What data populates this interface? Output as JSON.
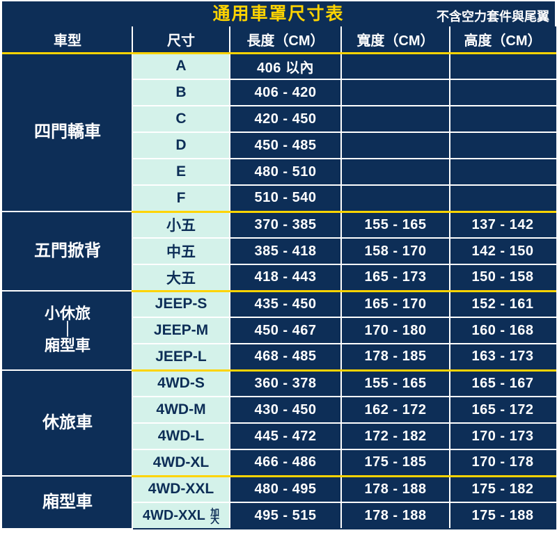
{
  "title": "通用車罩尺寸表",
  "subtitle": "不含空力套件與尾翼",
  "columns": [
    "車型",
    "尺寸",
    "長度（CM）",
    "寬度（CM）",
    "高度（CM）"
  ],
  "groups": [
    {
      "name_lines": [
        "四門轎車"
      ],
      "rows": [
        {
          "size": "A",
          "len": "406 以內",
          "w": "",
          "h": ""
        },
        {
          "size": "B",
          "len": "406 - 420",
          "w": "",
          "h": ""
        },
        {
          "size": "C",
          "len": "420 - 450",
          "w": "",
          "h": ""
        },
        {
          "size": "D",
          "len": "450 - 485",
          "w": "",
          "h": ""
        },
        {
          "size": "E",
          "len": "480 - 510",
          "w": "",
          "h": ""
        },
        {
          "size": "F",
          "len": "510 - 540",
          "w": "",
          "h": ""
        }
      ]
    },
    {
      "name_lines": [
        "五門掀背"
      ],
      "rows": [
        {
          "size": "小五",
          "len": "370 - 385",
          "w": "155 - 165",
          "h": "137 - 142"
        },
        {
          "size": "中五",
          "len": "385 - 418",
          "w": "158 - 170",
          "h": "142 - 150"
        },
        {
          "size": "大五",
          "len": "418 - 443",
          "w": "165 - 173",
          "h": "150 - 158"
        }
      ]
    },
    {
      "name_lines": [
        "小休旅",
        "｜",
        "廂型車"
      ],
      "small": true,
      "rows": [
        {
          "size": "JEEP-S",
          "len": "435 - 450",
          "w": "165 - 170",
          "h": "152 - 161"
        },
        {
          "size": "JEEP-M",
          "len": "450 - 467",
          "w": "170 - 180",
          "h": "160 - 168"
        },
        {
          "size": "JEEP-L",
          "len": "468 - 485",
          "w": "178 - 185",
          "h": "163 - 173"
        }
      ]
    },
    {
      "name_lines": [
        "休旅車"
      ],
      "rows": [
        {
          "size": "4WD-S",
          "len": "360 - 378",
          "w": "155 - 165",
          "h": "165 - 167"
        },
        {
          "size": "4WD-M",
          "len": "430 - 450",
          "w": "162 - 172",
          "h": "165 - 172"
        },
        {
          "size": "4WD-L",
          "len": "445 - 472",
          "w": "172 - 182",
          "h": "170 - 173"
        },
        {
          "size": "4WD-XL",
          "len": "466 - 486",
          "w": "175 - 185",
          "h": "170 - 178"
        }
      ]
    },
    {
      "name_lines": [
        "廂型車"
      ],
      "rows": [
        {
          "size": "4WD-XXL",
          "len": "480 - 495",
          "w": "178 - 188",
          "h": "175 - 182"
        },
        {
          "size_html": "xxl_extra",
          "size": "4WD-XXL",
          "extra": "加大",
          "len": "495 - 515",
          "w": "178 - 188",
          "h": "175 - 188"
        }
      ]
    }
  ],
  "colors": {
    "bg_dark": "#0d2e57",
    "accent": "#ffd400",
    "size_bg": "#d4f2ea",
    "text_light": "#ffffff"
  }
}
